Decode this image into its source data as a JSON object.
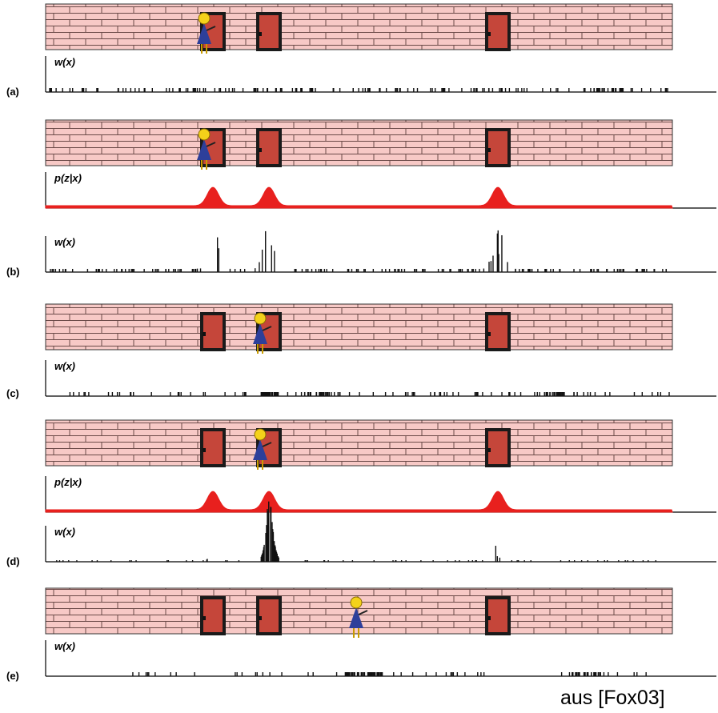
{
  "panels": [
    {
      "label": "(a)",
      "plots": [
        "w(x)"
      ]
    },
    {
      "label": "(b)",
      "plots": [
        "p(z|x)",
        "w(x)"
      ]
    },
    {
      "label": "(c)",
      "plots": [
        "w(x)"
      ]
    },
    {
      "label": "(d)",
      "plots": [
        "p(z|x)",
        "w(x)"
      ]
    },
    {
      "label": "(e)",
      "plots": [
        "w(x)"
      ]
    }
  ],
  "caption": "aus [Fox03]"
}
